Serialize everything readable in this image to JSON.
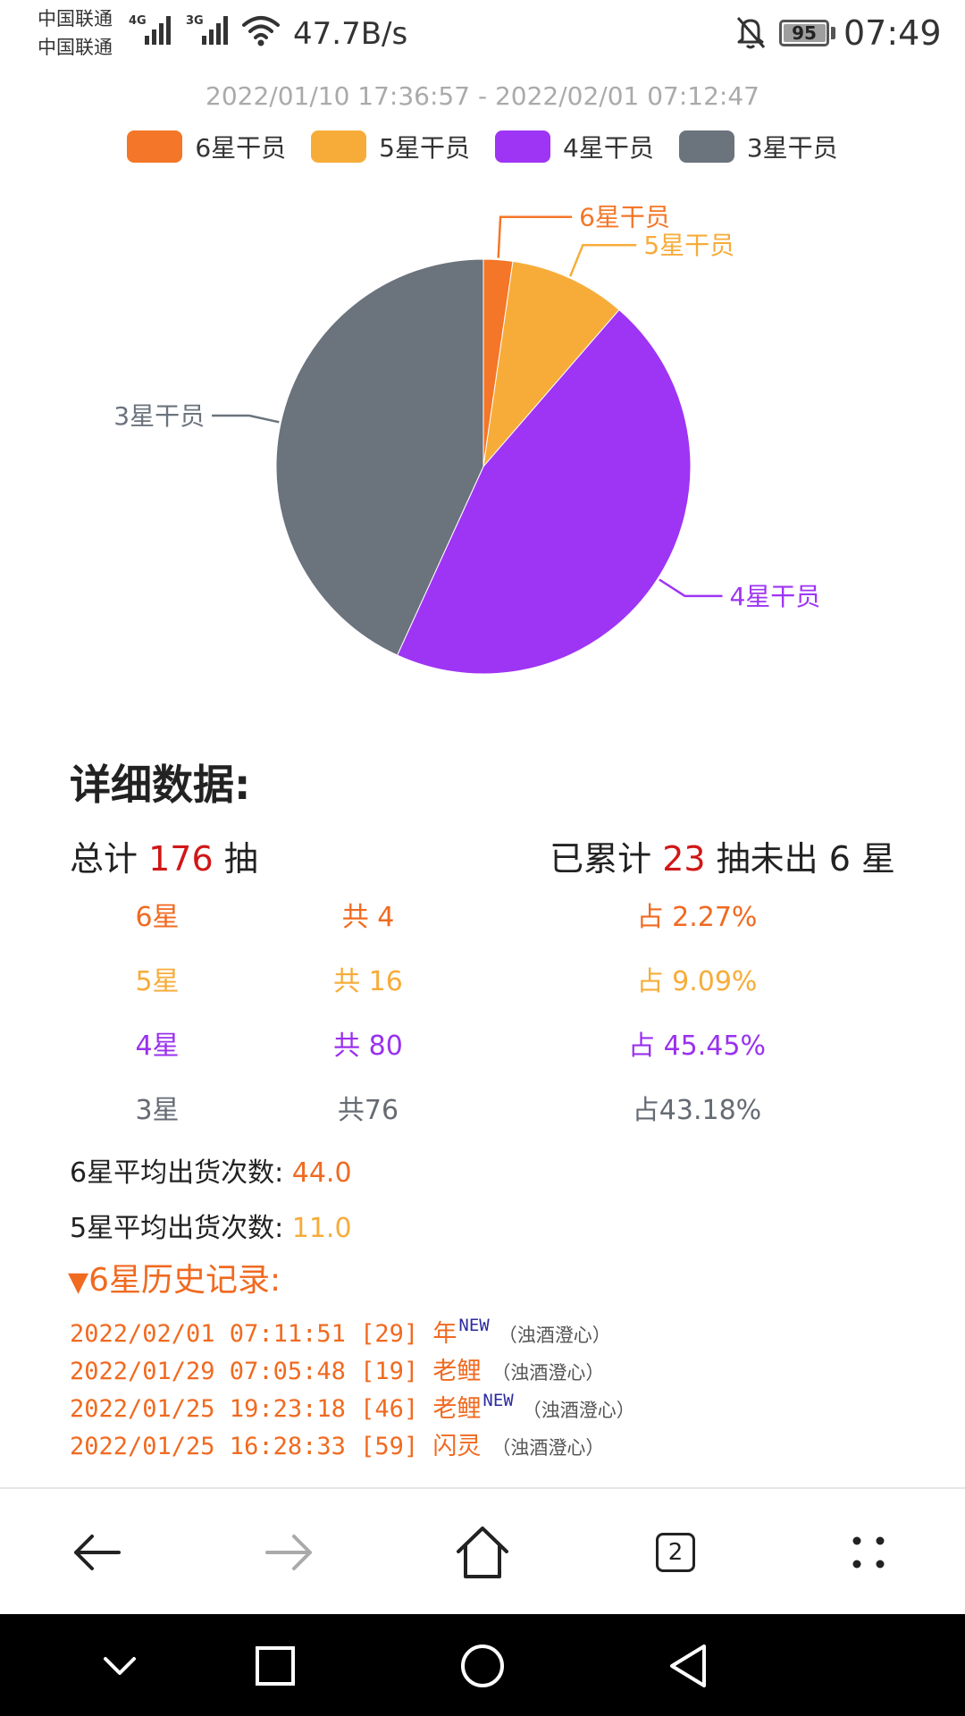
{
  "status_bar": {
    "carrier1": "中国联通",
    "carrier2": "中国联通",
    "net1": "4G",
    "net2": "3G",
    "speed": "47.7B/s",
    "battery": "95",
    "time": "07:49"
  },
  "chart_data": {
    "type": "pie",
    "subtitle": "2022/01/10 17:36:57 - 2022/02/01 07:12:47",
    "legend_position": "top-center",
    "categories": [
      "6星干员",
      "5星干员",
      "4星干员",
      "3星干员"
    ],
    "values": [
      4,
      16,
      80,
      76
    ],
    "colors": [
      "#f47628",
      "#f7ac3a",
      "#9e34f4",
      "#6b737d"
    ]
  },
  "details": {
    "title": "详细数据:",
    "total_prefix": "总计 ",
    "total_value": "176",
    "total_suffix": " 抽",
    "pity_prefix": "已累计 ",
    "pity_value": "23",
    "pity_suffix": " 抽未出 6 星",
    "rows": [
      {
        "rarity": "6星",
        "count": "共 4",
        "pct": "占 2.27%"
      },
      {
        "rarity": "5星",
        "count": "共 16",
        "pct": "占 9.09%"
      },
      {
        "rarity": "4星",
        "count": "共 80",
        "pct": "占 45.45%"
      },
      {
        "rarity": "3星",
        "count": "共76",
        "pct": "占43.18%"
      }
    ],
    "avg6_label": "6星平均出货次数: ",
    "avg6_value": "44.0",
    "avg5_label": "5星平均出货次数: ",
    "avg5_value": "11.0"
  },
  "history": {
    "triangle": "▼",
    "title": "6星历史记录:",
    "items": [
      {
        "time": "2022/02/01 07:11:51 [29] ",
        "name": "年",
        "new": "NEW",
        "pool": "（浊酒澄心）"
      },
      {
        "time": "2022/01/29 07:05:48 [19] ",
        "name": "老鲤",
        "new": "",
        "pool": "（浊酒澄心）"
      },
      {
        "time": "2022/01/25 19:23:18 [46] ",
        "name": "老鲤",
        "new": "NEW",
        "pool": "（浊酒澄心）"
      },
      {
        "time": "2022/01/25 16:28:33 [59] ",
        "name": "闪灵",
        "new": "",
        "pool": "（浊酒澄心）"
      }
    ]
  },
  "toolbar": {
    "tab_count": "2",
    "icons": [
      "back-arrow-icon",
      "forward-arrow-icon",
      "home-icon",
      "tabs-icon",
      "more-icon"
    ]
  },
  "system_nav": {
    "icons": [
      "chevron-down-icon",
      "square-icon",
      "circle-icon",
      "triangle-back-icon"
    ]
  }
}
